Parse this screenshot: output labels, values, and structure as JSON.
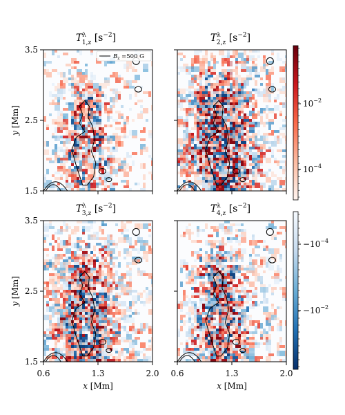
{
  "chart_data": {
    "type": "heatmap",
    "x_range": [
      0.6,
      2.0
    ],
    "y_range": [
      1.5,
      3.5
    ],
    "xlabel": "x [Mm]",
    "ylabel": "y [Mm]",
    "x_ticks": [
      "0.6",
      "1.3",
      "2.0"
    ],
    "y_ticks": [
      "3.5",
      "2.5",
      "1.5"
    ],
    "panels": [
      {
        "title_main": "T",
        "title_sup": "λ",
        "title_sub": "1,z",
        "title_unit": " [s",
        "title_exp": "−2",
        "title_end": "]"
      },
      {
        "title_main": "T",
        "title_sup": "λ",
        "title_sub": "2,z",
        "title_unit": " [s",
        "title_exp": "−2",
        "title_end": "]"
      },
      {
        "title_main": "T",
        "title_sup": "λ",
        "title_sub": "3,z",
        "title_unit": " [s",
        "title_exp": "−2",
        "title_end": "]"
      },
      {
        "title_main": "T",
        "title_sup": "λ",
        "title_sub": "4,z",
        "title_unit": " [s",
        "title_exp": "−2",
        "title_end": "]"
      }
    ],
    "legend": {
      "label_main": "B",
      "label_sub": "z",
      "label_rest": " =500 G",
      "placement": "top-right",
      "panel": 1
    },
    "contour_level": "500 G",
    "colorbar_positive": {
      "scale": "log",
      "cmap": "Reds",
      "ticks": [
        {
          "base": "10",
          "exp": "−2",
          "value": 0.01
        },
        {
          "base": "10",
          "exp": "−4",
          "value": 0.0001
        }
      ],
      "range": [
        3e-05,
        0.1
      ]
    },
    "colorbar_negative": {
      "scale": "log",
      "cmap": "Blues",
      "ticks": [
        {
          "base": "−10",
          "exp": "−4",
          "value": -0.0001
        },
        {
          "base": "−10",
          "exp": "−2",
          "value": -0.01
        }
      ],
      "range": [
        -3e-05,
        -0.1
      ]
    },
    "colors": {
      "positive": "#d7301f",
      "negative": "#2171b5",
      "contour": "#000000",
      "frame": "#000000"
    }
  }
}
